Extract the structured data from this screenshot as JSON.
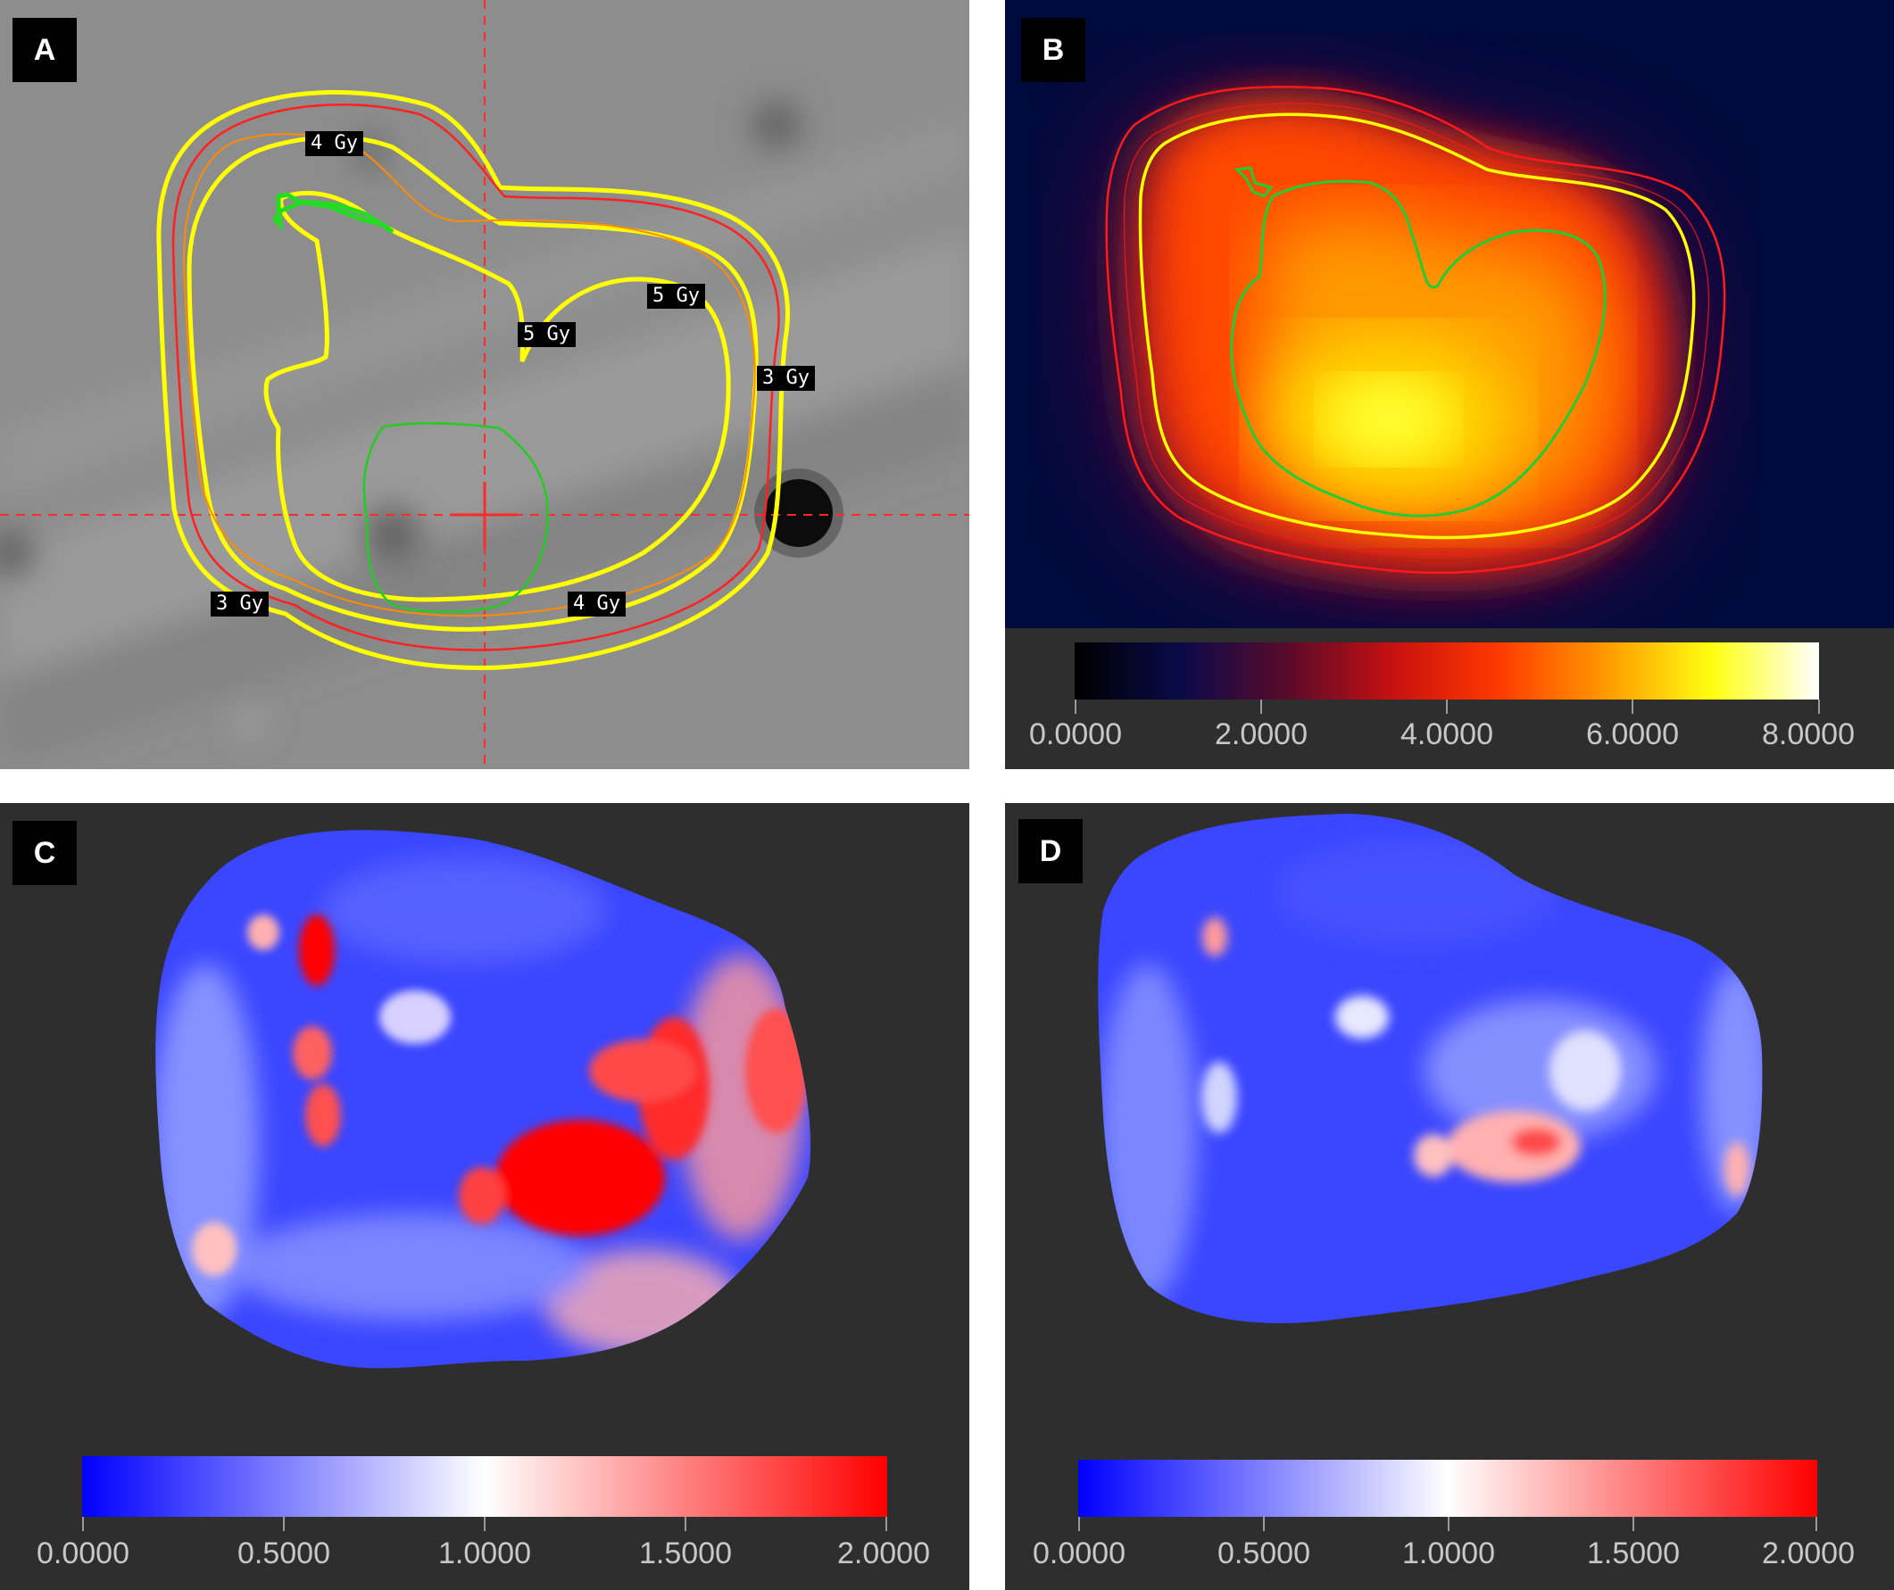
{
  "panels": {
    "a": {
      "letter": "A",
      "dose_labels": [
        "4 Gy",
        "5 Gy",
        "5 Gy",
        "3 Gy",
        "3 Gy",
        "4 Gy"
      ]
    },
    "b": {
      "letter": "B",
      "colorbar": {
        "colormap": [
          "#000000",
          "#0a0a4a",
          "#5a0a2a",
          "#c81010",
          "#ff3a00",
          "#ff9a00",
          "#ffff10",
          "#ffffff"
        ],
        "ticks": [
          "0.0000",
          "2.0000",
          "4.0000",
          "6.0000",
          "8.0000"
        ]
      }
    },
    "c": {
      "letter": "C",
      "colorbar": {
        "colormap": [
          "#0000ff",
          "#ffffff",
          "#ff0000"
        ],
        "ticks": [
          "0.0000",
          "0.5000",
          "1.0000",
          "1.5000",
          "2.0000"
        ]
      }
    },
    "d": {
      "letter": "D",
      "colorbar": {
        "colormap": [
          "#0000ff",
          "#ffffff",
          "#ff0000"
        ],
        "ticks": [
          "0.0000",
          "0.5000",
          "1.0000",
          "1.5000",
          "2.0000"
        ]
      }
    }
  },
  "colors": {
    "contour_yellow": "#ffff00",
    "contour_red": "#ff2020",
    "contour_orange": "#ff8c00",
    "contour_green": "#22dd22",
    "crosshair": "#ff2020"
  }
}
